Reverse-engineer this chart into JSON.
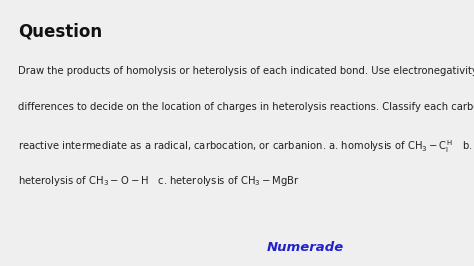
{
  "background_color": "#efefef",
  "title": "Question",
  "title_fontsize": 12,
  "body_fontsize": 7.2,
  "body_color": "#222222",
  "title_color": "#111111",
  "numerade_color": "#2222cc",
  "numerade_text": "Numerade",
  "numerade_fontsize": 9.5,
  "line1": "Draw the products of homolysis or heterolysis of each indicated bond. Use electronegativity",
  "line2": "differences to decide on the location of charges in heterolysis reactions. Classify each carbon",
  "line3": "reactive intermediate as a radical, carbocation, or carbanion. a. homolysis of ",
  "line3_formula": "$\\mathrm{CH_3-C_l^{\\,H}}$",
  "line3_post": "   b.",
  "line4_pre": "heterolysis of ",
  "line4_formula_b": "$\\mathrm{CH_3-O-H}$",
  "line4_mid": "   c. heterolysis of ",
  "line4_formula_c": "$\\mathrm{CH_3-MgBr}$"
}
